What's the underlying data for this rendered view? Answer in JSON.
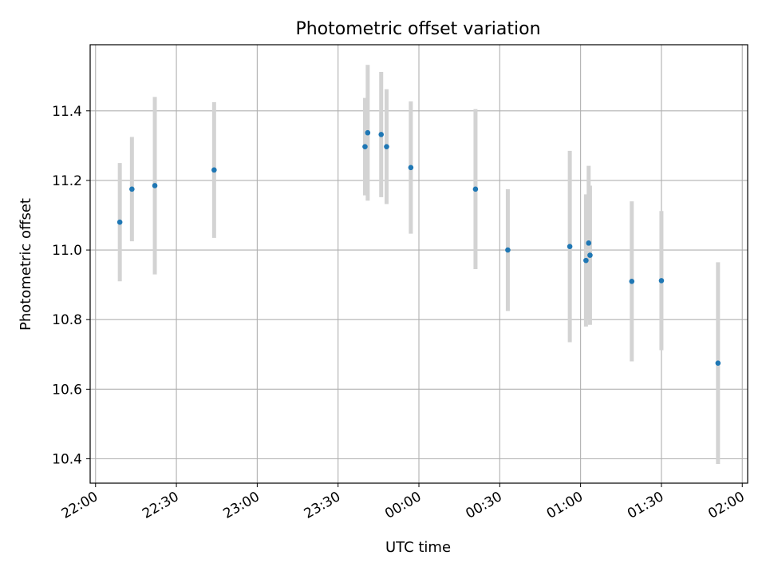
{
  "chart_data": {
    "type": "scatter",
    "title": "Photometric offset variation",
    "xlabel": "UTC time",
    "ylabel": "Photometric offset",
    "x_tick_labels": [
      "22:00",
      "22:30",
      "23:00",
      "23:30",
      "00:00",
      "00:30",
      "01:00",
      "01:30",
      "02:00"
    ],
    "y_tick_labels": [
      "10.4",
      "10.6",
      "10.8",
      "11.0",
      "11.2",
      "11.4"
    ],
    "y_tick_values": [
      10.4,
      10.6,
      10.8,
      11.0,
      11.2,
      11.4
    ],
    "xlim": [
      "2024-01-01T21:58:00",
      "2024-01-02T02:02:00"
    ],
    "ylim": [
      10.33,
      11.59
    ],
    "grid": true,
    "series": [
      {
        "marker_color": "#1f77b4",
        "errorbar_color": "#d3d3d3",
        "points": [
          {
            "x": "2024-01-01T22:09:00",
            "y": 11.08,
            "err": 0.17
          },
          {
            "x": "2024-01-01T22:13:30",
            "y": 11.175,
            "err": 0.15
          },
          {
            "x": "2024-01-01T22:22:00",
            "y": 11.185,
            "err": 0.255
          },
          {
            "x": "2024-01-01T22:44:00",
            "y": 11.23,
            "err": 0.195
          },
          {
            "x": "2024-01-01T23:40:00",
            "y": 11.297,
            "err": 0.14
          },
          {
            "x": "2024-01-01T23:41:00",
            "y": 11.337,
            "err": 0.195
          },
          {
            "x": "2024-01-01T23:46:00",
            "y": 11.332,
            "err": 0.18
          },
          {
            "x": "2024-01-01T23:48:00",
            "y": 11.297,
            "err": 0.165
          },
          {
            "x": "2024-01-01T23:57:00",
            "y": 11.237,
            "err": 0.19
          },
          {
            "x": "2024-01-02T00:21:00",
            "y": 11.175,
            "err": 0.23
          },
          {
            "x": "2024-01-02T00:33:00",
            "y": 11.0,
            "err": 0.175
          },
          {
            "x": "2024-01-02T00:56:00",
            "y": 11.01,
            "err": 0.275
          },
          {
            "x": "2024-01-02T01:02:00",
            "y": 10.97,
            "err": 0.19
          },
          {
            "x": "2024-01-02T01:03:00",
            "y": 11.02,
            "err": 0.222
          },
          {
            "x": "2024-01-02T01:03:30",
            "y": 10.985,
            "err": 0.2
          },
          {
            "x": "2024-01-02T01:19:00",
            "y": 10.91,
            "err": 0.23
          },
          {
            "x": "2024-01-02T01:30:00",
            "y": 10.912,
            "err": 0.2
          },
          {
            "x": "2024-01-02T01:51:00",
            "y": 10.675,
            "err": 0.29
          }
        ]
      }
    ]
  }
}
